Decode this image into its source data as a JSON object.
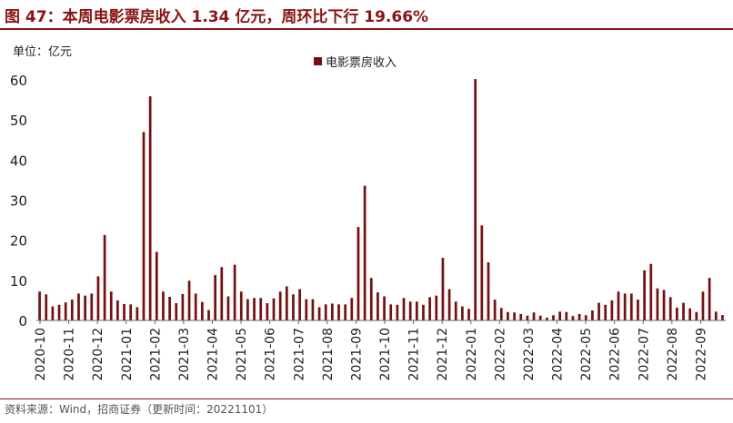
{
  "title": "图 47：本周电影票房收入 1.34 亿元，周环比下行 19.66%",
  "unit_label": "单位：亿元",
  "source": "资料来源：Wind，招商证券（更新时间：20221101）",
  "colors": {
    "bar": "#7b0d0d",
    "title": "#8b1414"
  },
  "chart_data": {
    "type": "bar",
    "title": "图 47：本周电影票房收入 1.34 亿元，周环比下行 19.66%",
    "ylabel": "单位：亿元",
    "ylim": [
      0,
      60
    ],
    "yticks": [
      0,
      10,
      20,
      30,
      40,
      50,
      60
    ],
    "legend": "top-center",
    "grid": false,
    "series": [
      {
        "name": "电影票房收入",
        "values": [
          7.2,
          6.5,
          3.5,
          3.9,
          4.5,
          5.2,
          6.7,
          6.2,
          6.7,
          11.0,
          21.3,
          7.2,
          5.0,
          4.1,
          4.0,
          3.3,
          47.0,
          55.9,
          17.1,
          7.2,
          5.9,
          4.3,
          6.6,
          9.9,
          6.7,
          4.6,
          2.6,
          11.3,
          13.3,
          6.0,
          13.9,
          7.2,
          5.3,
          5.6,
          5.6,
          4.3,
          5.5,
          7.2,
          8.5,
          6.5,
          7.8,
          5.3,
          5.3,
          3.3,
          4.0,
          4.2,
          4.0,
          4.0,
          5.6,
          23.3,
          33.6,
          10.6,
          7.0,
          6.0,
          4.0,
          3.9,
          5.6,
          4.7,
          4.7,
          3.9,
          5.8,
          6.2,
          15.6,
          7.8,
          4.7,
          3.5,
          2.9,
          60.2,
          23.7,
          14.5,
          5.2,
          3.1,
          2.1,
          2.0,
          1.6,
          1.2,
          2.0,
          1.2,
          0.7,
          1.3,
          2.2,
          2.1,
          1.1,
          1.6,
          1.3,
          2.5,
          4.4,
          3.9,
          5.0,
          7.2,
          6.7,
          6.7,
          5.2,
          12.5,
          14.1,
          8.0,
          7.6,
          5.8,
          3.2,
          4.4,
          3.0,
          2.1,
          7.2,
          10.6,
          2.2,
          1.34
        ]
      }
    ],
    "x_tick_labels": [
      "2020-10",
      "2020-11",
      "2020-12",
      "2021-01",
      "2021-02",
      "2021-03",
      "2021-04",
      "2021-05",
      "2021-06",
      "2021-07",
      "2021-08",
      "2021-09",
      "2021-10",
      "2021-11",
      "2021-12",
      "2022-01",
      "2022-02",
      "2022-03",
      "2022-04",
      "2022-05",
      "2022-06",
      "2022-07",
      "2022-08",
      "2022-09"
    ]
  }
}
